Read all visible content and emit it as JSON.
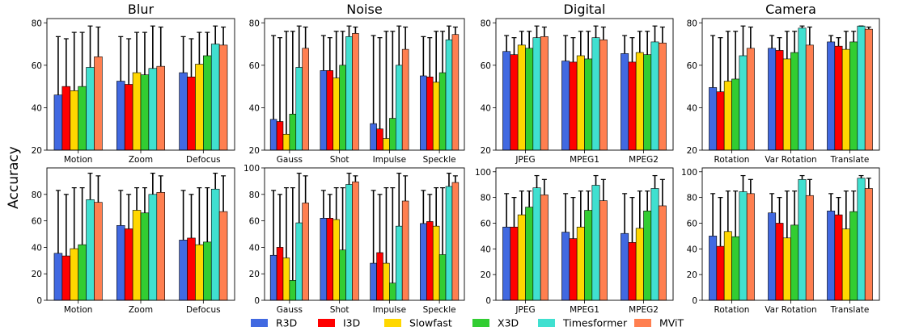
{
  "figure": {
    "ylabel": "Accuracy",
    "legend": [
      {
        "name": "R3D",
        "color": "#4169E1"
      },
      {
        "name": "I3D",
        "color": "#FF0000"
      },
      {
        "name": "Slowfast",
        "color": "#FFD700"
      },
      {
        "name": "X3D",
        "color": "#32CD32"
      },
      {
        "name": "Timesformer",
        "color": "#40E0D0"
      },
      {
        "name": "MViT",
        "color": "#FF7F50"
      }
    ]
  },
  "chart_data": [
    {
      "type": "bar",
      "title": "Blur",
      "ylim": [
        20,
        82
      ],
      "yticks": [
        20,
        40,
        60,
        80
      ],
      "categories": [
        "Motion",
        "Zoom",
        "Defocus"
      ],
      "values": [
        [
          46,
          50,
          48,
          50,
          59,
          64
        ],
        [
          52.5,
          51,
          56.5,
          55.5,
          58.5,
          59.5
        ],
        [
          56.5,
          54.5,
          60.5,
          64.5,
          70,
          69.5
        ]
      ],
      "error_top": [
        [
          73.5,
          72.5,
          75.5,
          75.5,
          78.5,
          78
        ],
        [
          73.5,
          72.5,
          75.5,
          75.5,
          78.5,
          78
        ],
        [
          73.5,
          72.5,
          75.5,
          75.5,
          78.5,
          78
        ]
      ]
    },
    {
      "type": "bar",
      "title": "Noise",
      "ylim": [
        20,
        82
      ],
      "yticks": [
        20,
        40,
        60,
        80
      ],
      "categories": [
        "Gauss",
        "Shot",
        "Impulse",
        "Speckle"
      ],
      "values": [
        [
          34.5,
          33.5,
          27.5,
          37,
          59,
          68
        ],
        [
          57.5,
          57.5,
          54,
          60,
          73.5,
          75
        ],
        [
          32.5,
          30,
          25.5,
          35,
          60,
          67.5
        ],
        [
          55,
          54.5,
          52,
          56.5,
          72,
          74.5
        ]
      ],
      "error_top": [
        [
          74,
          73,
          76,
          76,
          78.5,
          78
        ],
        [
          74,
          73,
          76,
          76,
          78.5,
          78
        ],
        [
          74,
          73,
          76,
          76,
          78.5,
          78
        ],
        [
          73.5,
          73,
          76,
          76,
          78.5,
          78
        ]
      ]
    },
    {
      "type": "bar",
      "title": "Digital",
      "ylim": [
        20,
        82
      ],
      "yticks": [
        20,
        40,
        60,
        80
      ],
      "categories": [
        "JPEG",
        "MPEG1",
        "MPEG2"
      ],
      "values": [
        [
          66.5,
          65,
          69.5,
          68,
          73,
          73.5
        ],
        [
          62,
          61.5,
          64.5,
          63,
          73,
          72
        ],
        [
          65.5,
          61.5,
          66,
          65,
          71,
          70.5
        ]
      ],
      "error_top": [
        [
          74,
          73,
          76,
          76,
          78.5,
          78
        ],
        [
          74,
          73,
          76,
          76,
          78.5,
          78
        ],
        [
          74,
          73,
          76,
          76,
          78.5,
          78
        ]
      ]
    },
    {
      "type": "bar",
      "title": "Camera",
      "ylim": [
        20,
        82
      ],
      "yticks": [
        20,
        40,
        60,
        80
      ],
      "categories": [
        "Rotation",
        "Var Rotation",
        "Translate"
      ],
      "values": [
        [
          49.5,
          47.5,
          52.5,
          53.5,
          64.5,
          68
        ],
        [
          68,
          67,
          63,
          66,
          77.5,
          69.5
        ],
        [
          71,
          69,
          67.5,
          71,
          78.5,
          77
        ]
      ],
      "error_top": [
        [
          74,
          73,
          76,
          76,
          78.5,
          78
        ],
        [
          74,
          73,
          76,
          76,
          78.5,
          78
        ],
        [
          74,
          73,
          76,
          76,
          78.5,
          78
        ]
      ]
    },
    {
      "type": "bar",
      "title": "",
      "ylim": [
        0,
        100
      ],
      "yticks": [
        0,
        20,
        40,
        60,
        80
      ],
      "categories": [
        "Motion",
        "Zoom",
        "Defocus"
      ],
      "values": [
        [
          35.5,
          33.5,
          39,
          42,
          76,
          74
        ],
        [
          56.5,
          54,
          68,
          66,
          80,
          81.5
        ],
        [
          45.5,
          47,
          42,
          44,
          84,
          67
        ]
      ],
      "error_top": [
        [
          83,
          80,
          85,
          85,
          96,
          94
        ],
        [
          83,
          80,
          85,
          85,
          96,
          94
        ],
        [
          83,
          80,
          85,
          85,
          96,
          94
        ]
      ]
    },
    {
      "type": "bar",
      "title": "",
      "ylim": [
        0,
        100
      ],
      "yticks": [
        0,
        20,
        40,
        60,
        80,
        100
      ],
      "categories": [
        "Gauss",
        "Shot",
        "Impulse",
        "Speckle"
      ],
      "values": [
        [
          34,
          40,
          32,
          15,
          58.5,
          73.5
        ],
        [
          62,
          62,
          61,
          38,
          87.5,
          89.5
        ],
        [
          28,
          36,
          28,
          13,
          56,
          75
        ],
        [
          58,
          59.5,
          56,
          34.5,
          86,
          89
        ]
      ],
      "error_top": [
        [
          83,
          80,
          85,
          85,
          96,
          94
        ],
        [
          83,
          80,
          85,
          85,
          96,
          94
        ],
        [
          83,
          80,
          85,
          85,
          96,
          94
        ],
        [
          83,
          80,
          85,
          85,
          96,
          94
        ]
      ]
    },
    {
      "type": "bar",
      "title": "",
      "ylim": [
        0,
        103
      ],
      "yticks": [
        0,
        20,
        40,
        60,
        80,
        100
      ],
      "categories": [
        "JPEG",
        "MPEG1",
        "MPEG2"
      ],
      "values": [
        [
          57,
          57,
          66.5,
          72.5,
          87.5,
          82
        ],
        [
          53,
          48,
          57,
          70,
          89.5,
          77.5
        ],
        [
          52,
          45,
          56,
          69.5,
          87,
          73.5
        ]
      ],
      "error_top": [
        [
          83,
          80,
          85,
          85,
          97,
          94
        ],
        [
          83,
          80,
          85,
          85,
          97,
          94
        ],
        [
          83,
          80,
          85,
          85,
          97,
          94
        ]
      ]
    },
    {
      "type": "bar",
      "title": "",
      "ylim": [
        0,
        103
      ],
      "yticks": [
        0,
        20,
        40,
        60,
        80,
        100
      ],
      "categories": [
        "Rotation",
        "Var Rotation",
        "Translate"
      ],
      "values": [
        [
          50,
          42,
          53.5,
          49.5,
          84.5,
          83
        ],
        [
          68,
          60,
          48.5,
          58.5,
          94,
          81.5
        ],
        [
          69.5,
          66.5,
          55.5,
          69,
          95,
          87
        ]
      ],
      "error_top": [
        [
          83,
          80,
          85,
          85,
          97,
          94
        ],
        [
          83,
          80,
          85,
          85,
          97,
          94
        ],
        [
          83,
          80,
          85,
          85,
          97,
          95
        ]
      ]
    }
  ]
}
